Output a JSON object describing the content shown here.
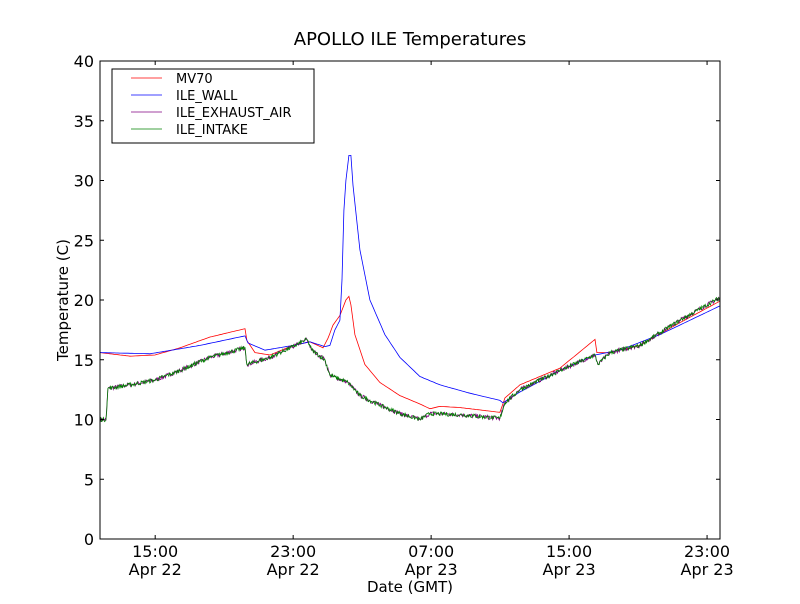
{
  "chart_data": {
    "type": "line",
    "title": "APOLLO ILE Temperatures",
    "xlabel": "Date (GMT)",
    "ylabel": "Temperature (C)",
    "x_units": "hours since Apr 22 00:00 GMT",
    "xlim": [
      11.8,
      47.75
    ],
    "ylim": [
      0,
      40
    ],
    "yticks": [
      0,
      5,
      10,
      15,
      20,
      25,
      30,
      35,
      40
    ],
    "xticks": [
      {
        "x": 15,
        "time": "15:00",
        "date": "Apr 22"
      },
      {
        "x": 23,
        "time": "23:00",
        "date": "Apr 22"
      },
      {
        "x": 31,
        "time": "07:00",
        "date": "Apr 23"
      },
      {
        "x": 39,
        "time": "15:00",
        "date": "Apr 23"
      },
      {
        "x": 47,
        "time": "23:00",
        "date": "Apr 23"
      }
    ],
    "grid": false,
    "legend_position": "top-left",
    "series": [
      {
        "name": "MV70",
        "color": "#ff0000",
        "x": [
          11.8,
          13.54,
          14.99,
          16.44,
          18.18,
          20.21,
          20.32,
          20.79,
          21.66,
          22.99,
          23.97,
          24.73,
          25.02,
          25.31,
          25.71,
          26.06,
          26.23,
          26.35,
          26.58,
          27.16,
          28.03,
          29.19,
          30.35,
          30.93,
          31.51,
          32.67,
          34.99,
          35.28,
          36.15,
          38.47,
          40.5,
          40.61,
          41.37,
          43.1,
          45.42,
          47.74
        ],
        "y": [
          15.6,
          15.3,
          15.4,
          16.0,
          16.9,
          17.6,
          16.6,
          15.6,
          15.4,
          16.2,
          16.5,
          16.0,
          16.8,
          17.9,
          18.7,
          20.0,
          20.3,
          19.6,
          17.1,
          14.6,
          13.1,
          12.0,
          11.3,
          10.9,
          11.1,
          11.0,
          10.6,
          11.8,
          12.9,
          14.3,
          16.7,
          15.6,
          15.6,
          16.2,
          18.1,
          19.9
        ]
      },
      {
        "name": "ILE_WALL",
        "color": "#0000ff",
        "x": [
          11.8,
          14.7,
          17.6,
          20.21,
          20.38,
          21.37,
          22.99,
          23.97,
          24.84,
          25.13,
          25.42,
          25.71,
          25.83,
          25.94,
          26.06,
          26.23,
          26.35,
          26.47,
          26.87,
          27.45,
          28.32,
          29.19,
          30.35,
          31.51,
          33.25,
          34.99,
          35.16,
          36.15,
          38.47,
          40.5,
          41.94,
          44.26,
          47.74
        ],
        "y": [
          15.6,
          15.5,
          16.2,
          17.0,
          16.4,
          15.8,
          16.2,
          16.5,
          16.1,
          16.2,
          17.5,
          18.3,
          21.7,
          27.5,
          30.0,
          32.1,
          32.1,
          29.6,
          24.2,
          20.0,
          17.1,
          15.2,
          13.6,
          12.9,
          12.2,
          11.6,
          11.4,
          12.3,
          14.1,
          15.4,
          15.8,
          17.1,
          19.5
        ]
      },
      {
        "name": "ILE_EXHAUST_AIR",
        "color": "#800080",
        "x": [
          11.8,
          12.15,
          12.26,
          13.54,
          14.99,
          16.44,
          18.18,
          20.21,
          20.32,
          21.66,
          22.99,
          23.8,
          24.09,
          24.84,
          25.13,
          26.18,
          26.87,
          28.03,
          29.19,
          30.35,
          30.93,
          32.67,
          34.99,
          35.28,
          36.15,
          38.47,
          40.5,
          40.67,
          41.37,
          43.1,
          45.42,
          47.74
        ],
        "y": [
          10.0,
          10.0,
          12.6,
          12.9,
          13.3,
          14.1,
          15.2,
          16.0,
          14.6,
          15.2,
          16.1,
          16.7,
          15.8,
          15.0,
          13.7,
          13.1,
          12.0,
          11.2,
          10.5,
          10.0,
          10.5,
          10.4,
          10.1,
          11.4,
          12.5,
          14.1,
          15.4,
          14.6,
          15.6,
          16.2,
          18.3,
          20.2
        ]
      },
      {
        "name": "ILE_INTAKE",
        "color": "#008000",
        "x": [
          11.8,
          12.15,
          12.26,
          13.54,
          14.99,
          16.44,
          18.18,
          20.21,
          20.32,
          21.66,
          22.99,
          23.8,
          24.09,
          24.84,
          25.13,
          26.18,
          26.87,
          28.03,
          29.19,
          30.35,
          30.93,
          32.67,
          34.99,
          35.28,
          36.15,
          38.47,
          40.5,
          40.67,
          41.37,
          43.1,
          45.42,
          47.74
        ],
        "y": [
          10.0,
          10.0,
          12.6,
          12.9,
          13.3,
          14.1,
          15.2,
          16.0,
          14.6,
          15.2,
          16.1,
          16.7,
          15.8,
          15.0,
          13.7,
          13.1,
          12.0,
          11.2,
          10.5,
          10.0,
          10.5,
          10.4,
          10.1,
          11.4,
          12.5,
          14.1,
          15.4,
          14.6,
          15.6,
          16.2,
          18.3,
          20.2
        ]
      }
    ]
  }
}
